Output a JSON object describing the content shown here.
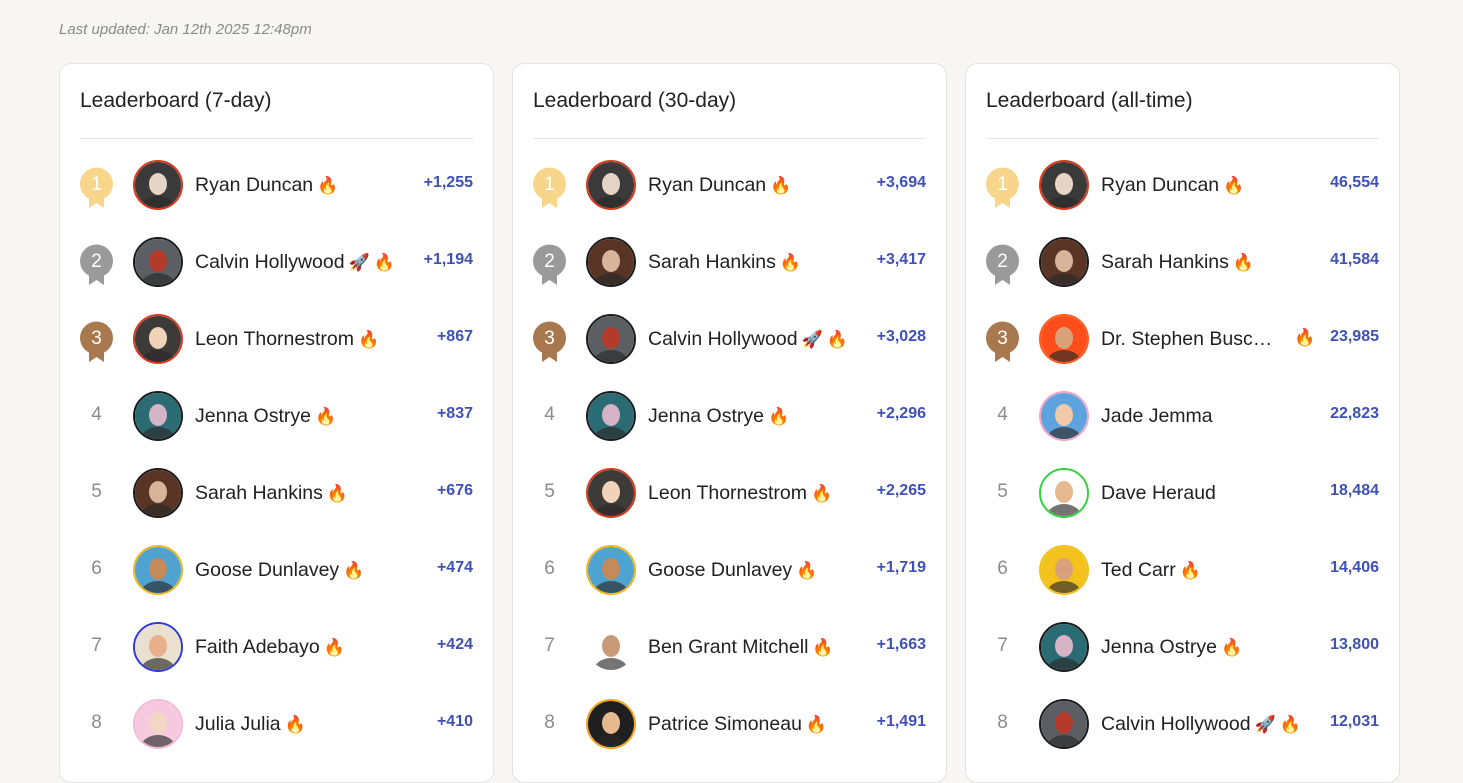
{
  "last_updated": "Last updated: Jan 12th 2025 12:48pm",
  "icons": {
    "fire": "🔥",
    "rocket": "🚀",
    "medal": "ribbon-medal-icon"
  },
  "colors": {
    "gold": "#f7d58a",
    "silver": "#9a9a9a",
    "bronze": "#a8794f",
    "score": "#3f51b5",
    "fire": "#ff6a00",
    "avatar_red_ring": "#d93a1f",
    "avatar_green_ring": "#2fd33a",
    "avatar_blue_ring": "#2e3bd6",
    "avatar_rainbow_ring": "#f2b51b"
  },
  "boards": [
    {
      "title": "Leaderboard (7-day)",
      "rows": [
        {
          "rank": "1",
          "name": "Ryan Duncan",
          "score": "+1,255",
          "rocket": false,
          "fire": true,
          "avatar": {
            "ring": "#d93a1f",
            "bg": "#3a3a3a",
            "skin": "#e6d5c7"
          }
        },
        {
          "rank": "2",
          "name": "Calvin Hollywood",
          "score": "+1,194",
          "rocket": true,
          "fire": true,
          "avatar": {
            "ring": "#1b1b1b",
            "bg": "#5b5f63",
            "skin": "#b43a2c"
          }
        },
        {
          "rank": "3",
          "name": "Leon Thornestrom",
          "score": "+867",
          "rocket": false,
          "fire": true,
          "avatar": {
            "ring": "#d93a1f",
            "bg": "#3d3b38",
            "skin": "#f0d3b8"
          }
        },
        {
          "rank": "4",
          "name": "Jenna Ostrye",
          "score": "+837",
          "rocket": false,
          "fire": true,
          "avatar": {
            "ring": "#1b1b1b",
            "bg": "#2b6b73",
            "skin": "#d7b3c8"
          }
        },
        {
          "rank": "5",
          "name": "Sarah Hankins",
          "score": "+676",
          "rocket": false,
          "fire": true,
          "avatar": {
            "ring": "#1b1b1b",
            "bg": "#5a3526",
            "skin": "#d8b49a"
          }
        },
        {
          "rank": "6",
          "name": "Goose Dunlavey",
          "score": "+474",
          "rocket": false,
          "fire": true,
          "avatar": {
            "ring": "#f2b51b",
            "bg": "#4fa3d1",
            "skin": "#c48a5a"
          }
        },
        {
          "rank": "7",
          "name": "Faith Adebayo",
          "score": "+424",
          "rocket": false,
          "fire": true,
          "avatar": {
            "ring": "#2e3bd6",
            "bg": "#e9e0cf",
            "skin": "#e8b08a"
          }
        },
        {
          "rank": "8",
          "name": "Julia Julia",
          "score": "+410",
          "rocket": false,
          "fire": true,
          "avatar": {
            "ring": "#f3b9d8",
            "bg": "#f6c9df",
            "skin": "#f3d6c4"
          }
        }
      ]
    },
    {
      "title": "Leaderboard (30-day)",
      "rows": [
        {
          "rank": "1",
          "name": "Ryan Duncan",
          "score": "+3,694",
          "rocket": false,
          "fire": true,
          "avatar": {
            "ring": "#d93a1f",
            "bg": "#3a3a3a",
            "skin": "#e6d5c7"
          }
        },
        {
          "rank": "2",
          "name": "Sarah Hankins",
          "score": "+3,417",
          "rocket": false,
          "fire": true,
          "avatar": {
            "ring": "#1b1b1b",
            "bg": "#5a3526",
            "skin": "#d8b49a"
          }
        },
        {
          "rank": "3",
          "name": "Calvin Hollywood",
          "score": "+3,028",
          "rocket": true,
          "fire": true,
          "avatar": {
            "ring": "#1b1b1b",
            "bg": "#5b5f63",
            "skin": "#b43a2c"
          }
        },
        {
          "rank": "4",
          "name": "Jenna Ostrye",
          "score": "+2,296",
          "rocket": false,
          "fire": true,
          "avatar": {
            "ring": "#1b1b1b",
            "bg": "#2b6b73",
            "skin": "#d7b3c8"
          }
        },
        {
          "rank": "5",
          "name": "Leon Thornestrom",
          "score": "+2,265",
          "rocket": false,
          "fire": true,
          "avatar": {
            "ring": "#d93a1f",
            "bg": "#3d3b38",
            "skin": "#f0d3b8"
          }
        },
        {
          "rank": "6",
          "name": "Goose Dunlavey",
          "score": "+1,719",
          "rocket": false,
          "fire": true,
          "avatar": {
            "ring": "#f2b51b",
            "bg": "#4fa3d1",
            "skin": "#c48a5a"
          }
        },
        {
          "rank": "7",
          "name": "Ben Grant Mitchell",
          "score": "+1,663",
          "rocket": false,
          "fire": true,
          "avatar": {
            "ring": "#ffffff",
            "bg": "#ffffff",
            "skin": "#c99a78"
          }
        },
        {
          "rank": "8",
          "name": "Patrice Simoneau",
          "score": "+1,491",
          "rocket": false,
          "fire": true,
          "avatar": {
            "ring": "#f2a41b",
            "bg": "#1f1f1f",
            "skin": "#e7b98f"
          }
        }
      ]
    },
    {
      "title": "Leaderboard (all-time)",
      "rows": [
        {
          "rank": "1",
          "name": "Ryan Duncan",
          "score": "46,554",
          "rocket": false,
          "fire": true,
          "avatar": {
            "ring": "#d93a1f",
            "bg": "#3a3a3a",
            "skin": "#e6d5c7"
          }
        },
        {
          "rank": "2",
          "name": "Sarah Hankins",
          "score": "41,584",
          "rocket": false,
          "fire": true,
          "avatar": {
            "ring": "#1b1b1b",
            "bg": "#5a3526",
            "skin": "#d8b49a"
          }
        },
        {
          "rank": "3",
          "name": "Dr. Stephen Busce...",
          "score": "23,985",
          "rocket": false,
          "fire": true,
          "fire_far": true,
          "avatar": {
            "ring": "#ff5a1f",
            "bg": "#ff4e1a",
            "skin": "#d9a37a"
          }
        },
        {
          "rank": "4",
          "name": "Jade Jemma",
          "score": "22,823",
          "rocket": false,
          "fire": false,
          "avatar": {
            "ring": "#f3a6c8",
            "bg": "#5fa3de",
            "skin": "#f2c9a8"
          }
        },
        {
          "rank": "5",
          "name": "Dave Heraud",
          "score": "18,484",
          "rocket": false,
          "fire": false,
          "avatar": {
            "ring": "#2fd33a",
            "bg": "#ffffff",
            "skin": "#e7b98f"
          }
        },
        {
          "rank": "6",
          "name": "Ted Carr",
          "score": "14,406",
          "rocket": false,
          "fire": true,
          "avatar": {
            "ring": "#f2c21b",
            "bg": "#f3c21d",
            "skin": "#d9a07b"
          }
        },
        {
          "rank": "7",
          "name": "Jenna Ostrye",
          "score": "13,800",
          "rocket": false,
          "fire": true,
          "avatar": {
            "ring": "#1b1b1b",
            "bg": "#2b6b73",
            "skin": "#d7b3c8"
          }
        },
        {
          "rank": "8",
          "name": "Calvin Hollywood",
          "score": "12,031",
          "rocket": true,
          "fire": true,
          "avatar": {
            "ring": "#1b1b1b",
            "bg": "#5b5f63",
            "skin": "#b43a2c"
          }
        }
      ]
    }
  ]
}
